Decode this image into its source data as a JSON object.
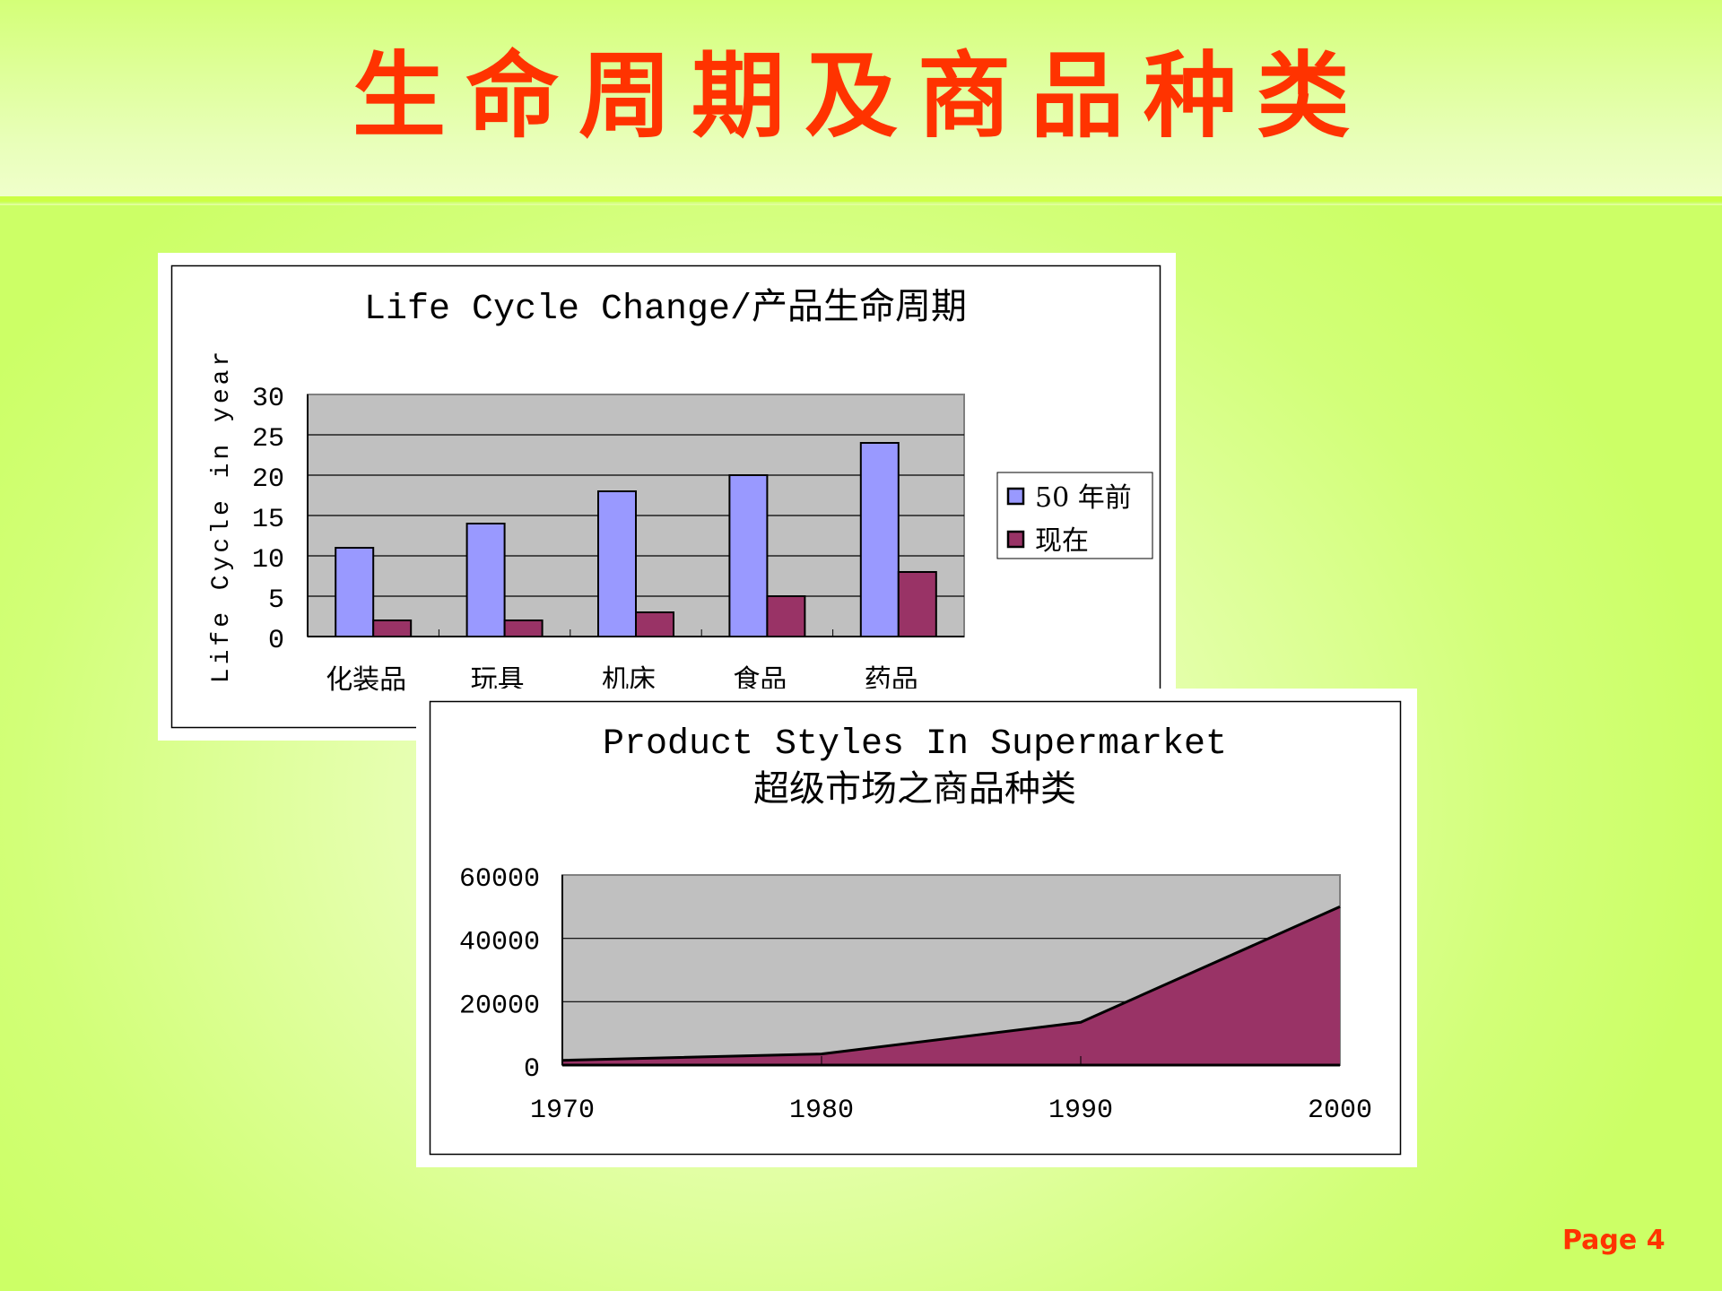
{
  "slide": {
    "title": "生命周期及商品种类",
    "page_label": "Page 4",
    "title_color": "#ff3300"
  },
  "chart_data": [
    {
      "type": "bar",
      "title": "Life Cycle Change/产品生命周期",
      "ylabel": "Life Cycle in year",
      "xlabel": "",
      "categories": [
        "化装品",
        "玩具",
        "机床",
        "食品",
        "药品"
      ],
      "series": [
        {
          "name": "50 年前",
          "values": [
            11,
            14,
            18,
            20,
            24
          ],
          "color": "#9999ff"
        },
        {
          "name": "现在",
          "values": [
            2,
            2,
            3,
            5,
            8
          ],
          "color": "#993366"
        }
      ],
      "ylim": [
        0,
        30
      ],
      "yticks": [
        "0",
        "5",
        "10",
        "15",
        "20",
        "25",
        "30"
      ],
      "grid": true,
      "legend": "right",
      "plot_background": "#c0c0c0"
    },
    {
      "type": "area",
      "title": "Product Styles In Supermarket",
      "subtitle": "超级市场之商品种类",
      "xlabel": "",
      "ylabel": "",
      "x": [
        "1970",
        "1980",
        "1990",
        "2000"
      ],
      "series": [
        {
          "values": [
            1500,
            3500,
            13500,
            50000
          ],
          "color": "#993366"
        }
      ],
      "ylim": [
        0,
        60000
      ],
      "yticks": [
        "0",
        "20000",
        "40000",
        "60000"
      ],
      "grid": true,
      "plot_background": "#c0c0c0"
    }
  ]
}
